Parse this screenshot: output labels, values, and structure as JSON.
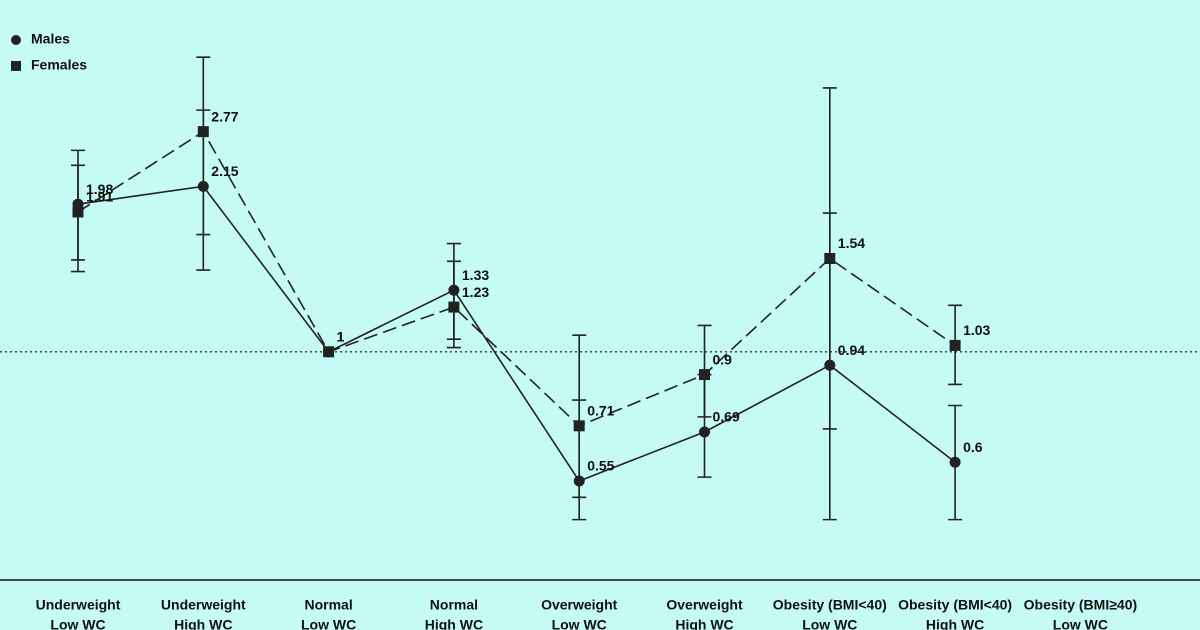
{
  "chart_data": {
    "type": "line",
    "categories": [
      [
        "Underweight",
        "Low WC"
      ],
      [
        "Underweight",
        "High WC"
      ],
      [
        "Normal",
        "Low WC"
      ],
      [
        "Normal",
        "High WC"
      ],
      [
        "Overweight",
        "Low WC"
      ],
      [
        "Overweight",
        "High WC"
      ],
      [
        "Obesity (BMI<40)",
        "Low WC"
      ],
      [
        "Obesity (BMI<40)",
        "High WC"
      ],
      [
        "Obesity (BMI≥40)",
        "Low WC"
      ]
    ],
    "log_scale": true,
    "ylim": [
      0.3,
      5
    ],
    "reference_line": 1,
    "legend": "top-left",
    "series": [
      {
        "name": "Males",
        "color": "#222222",
        "marker": "circle",
        "dash": false,
        "values": [
          1.98,
          2.15,
          1,
          1.33,
          0.55,
          0.69,
          0.94,
          0.6,
          null
        ],
        "lower": [
          1.45,
          1.46,
          null,
          1.02,
          0.46,
          0.56,
          0.46,
          0.46,
          null
        ],
        "upper": [
          2.54,
          3.06,
          null,
          1.65,
          0.8,
          0.9,
          1.9,
          0.78,
          null
        ]
      },
      {
        "name": "Females",
        "color": "#222222",
        "marker": "square",
        "dash": true,
        "values": [
          1.91,
          2.77,
          1,
          1.23,
          0.71,
          0.9,
          1.54,
          1.03,
          null
        ],
        "lower": [
          1.53,
          1.72,
          null,
          1.06,
          0.51,
          0.74,
          0.7,
          0.86,
          null
        ],
        "upper": [
          2.37,
          3.91,
          null,
          1.52,
          1.08,
          1.13,
          3.39,
          1.24,
          null
        ]
      }
    ]
  }
}
